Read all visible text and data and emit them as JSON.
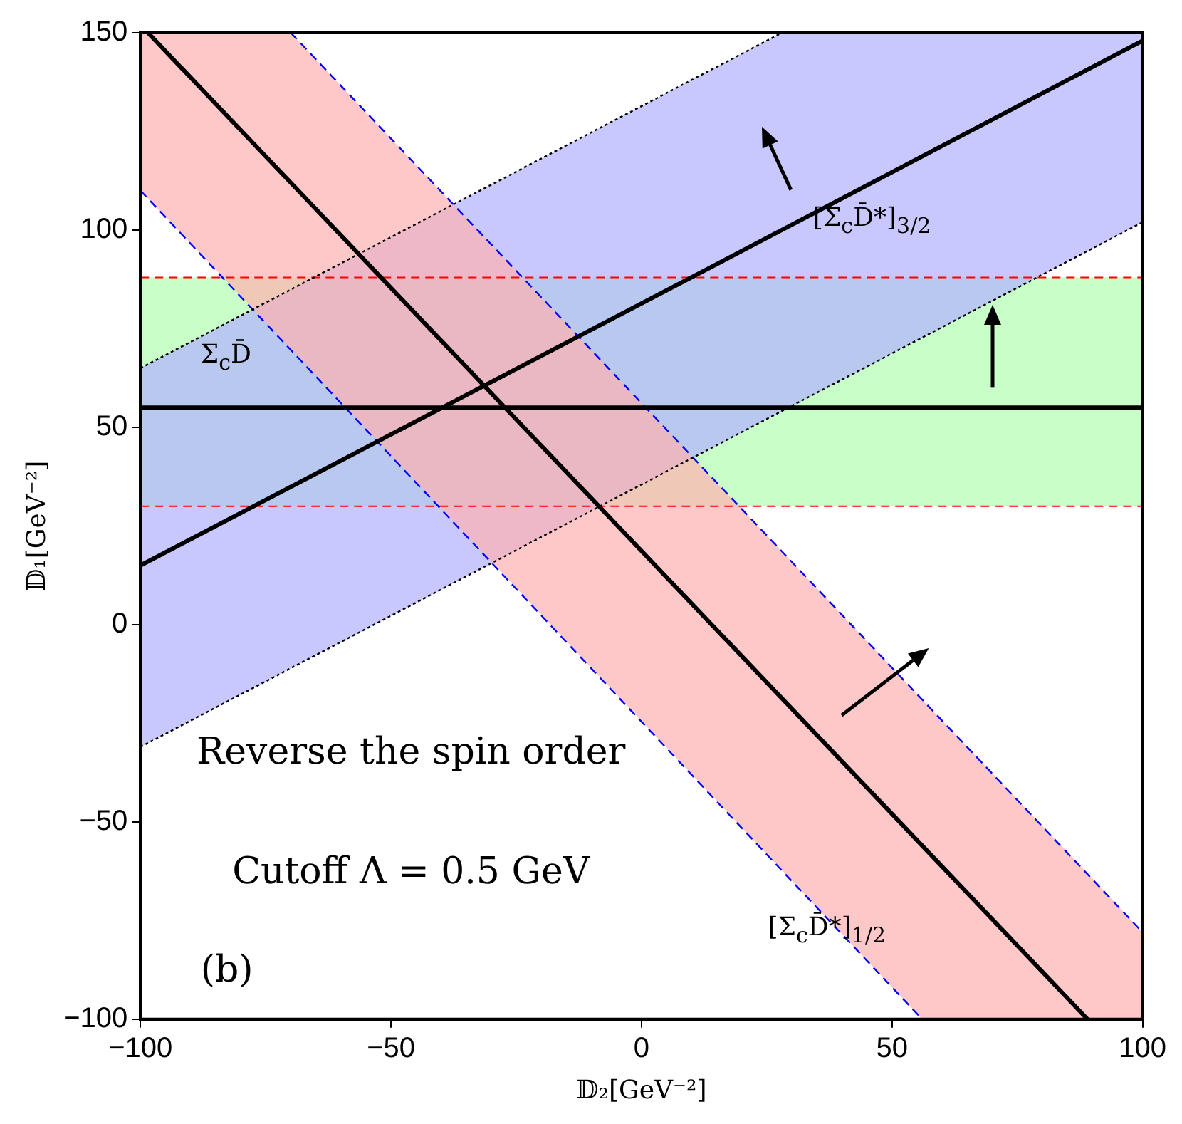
{
  "chart_data": {
    "type": "line",
    "xlabel": "𝔻₂[GeV⁻²]",
    "ylabel": "𝔻₁[GeV⁻²]",
    "xlim": [
      -100,
      100
    ],
    "xticks": [
      -100,
      -50,
      0,
      50,
      100
    ],
    "ylim": [
      -100,
      150
    ],
    "yticks": [
      -100,
      -50,
      0,
      50,
      100,
      150
    ],
    "grid": false,
    "legend": false,
    "marker": "none",
    "series": [
      {
        "color": "#000000",
        "x": [
          -100,
          100
        ],
        "values": [
          55,
          55
        ],
        "lower": [
          30,
          30
        ],
        "upper": [
          88,
          88
        ]
      },
      {
        "color": "#000000",
        "x": [
          -100,
          28,
          100
        ],
        "values": [
          15,
          100,
          148
        ],
        "lower": [
          -31,
          54,
          102
        ],
        "upper": [
          65,
          150,
          150
        ]
      },
      {
        "color": "#000000",
        "x": [
          -100,
          -98.5,
          -70,
          56,
          89,
          100
        ],
        "values": [
          null,
          150,
          112,
          -56,
          -100,
          null
        ],
        "lower": [
          110,
          108,
          70,
          -100,
          -100,
          -100
        ],
        "upper": [
          150,
          150,
          150,
          -19,
          -63,
          -78
        ]
      },
      {
        "color": "#000000",
        "line_style": "dotted",
        "x": [
          -100,
          28
        ],
        "values": [
          65,
          150
        ]
      },
      {
        "color": "#000000",
        "line_style": "dotted",
        "x": [
          -100,
          100
        ],
        "values": [
          -31,
          102
        ]
      },
      {
        "color": "#0000ff",
        "line_style": "dashed",
        "x": [
          -70,
          100
        ],
        "values": [
          150,
          -78
        ]
      },
      {
        "color": "#0000ff",
        "line_style": "dashed",
        "x": [
          -100,
          56
        ],
        "values": [
          110,
          -100
        ]
      }
    ],
    "ref_lines": [
      {
        "axis": "y",
        "value": 88,
        "color": "#ff0000",
        "line_style": "dashed"
      },
      {
        "axis": "y",
        "value": 30,
        "color": "#ff0000",
        "line_style": "dashed"
      }
    ],
    "annotations": [
      "Σ$_{c}$D̄",
      "[Σ$_{c}$D̄*]$_{3/2}$",
      "[Σ$_{c}$D̄*]$_{1/2}$",
      "Reverse the spin order",
      "Cutoff Λ = 0.5 GeV",
      "(b)"
    ]
  }
}
